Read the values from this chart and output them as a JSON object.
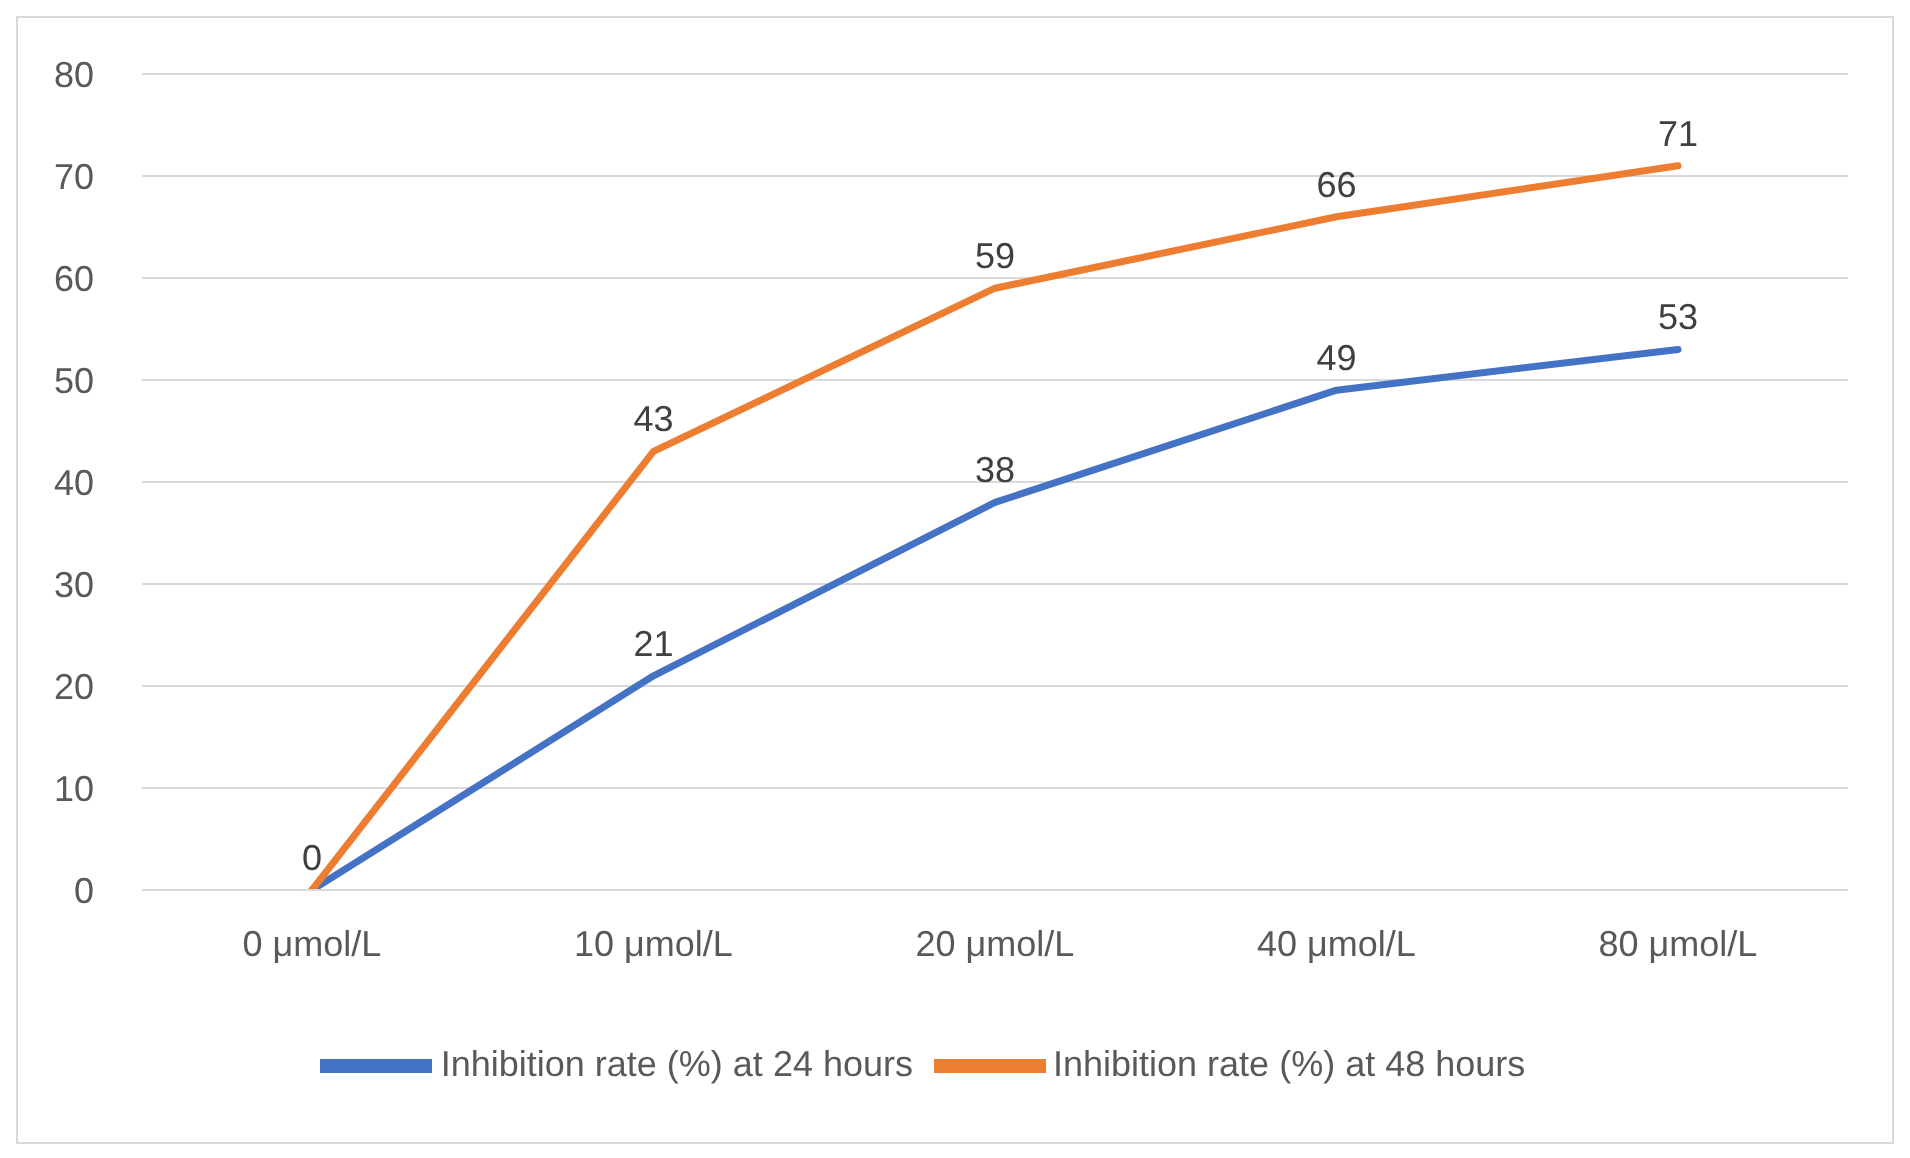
{
  "chart_data": {
    "type": "line",
    "categories": [
      "0 μmol/L",
      "10 μmol/L",
      "20 μmol/L",
      "40 μmol/L",
      "80 μmol/L"
    ],
    "series": [
      {
        "name": "Inhibition rate (%) at 24 hours",
        "color": "#4472c4",
        "values": [
          0,
          21,
          38,
          49,
          53
        ],
        "value_labels": [
          "0",
          "21",
          "38",
          "49",
          "53"
        ]
      },
      {
        "name": "Inhibition rate (%) at 48 hours",
        "color": "#ed7d31",
        "values": [
          0,
          43,
          59,
          66,
          71
        ],
        "value_labels": [
          null,
          "43",
          "59",
          "66",
          "71"
        ]
      }
    ],
    "ylim": [
      0,
      80
    ],
    "yticks": [
      0,
      10,
      20,
      30,
      40,
      50,
      60,
      70,
      80
    ],
    "grid": "y",
    "legend": "bottom",
    "marker": "none",
    "line_style": "solid"
  }
}
